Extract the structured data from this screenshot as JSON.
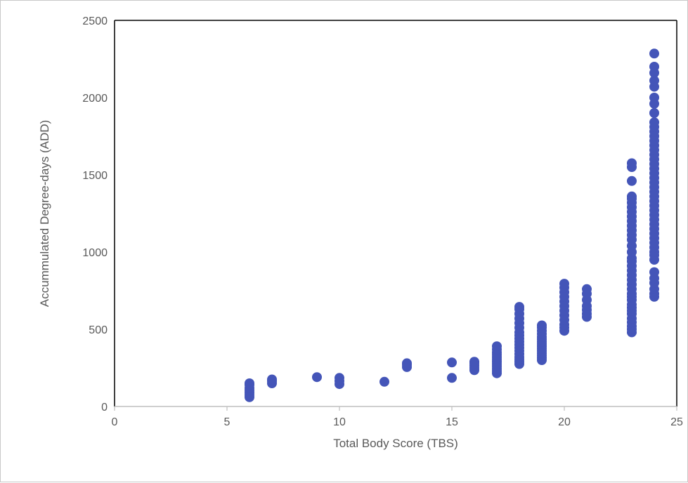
{
  "chart_data": {
    "type": "scatter",
    "title": "",
    "xlabel": "Total Body Score (TBS)",
    "ylabel": "Accummulated Degree-days (ADD)",
    "xlim": [
      0,
      25
    ],
    "ylim": [
      0,
      2500
    ],
    "xticks": [
      "0",
      "5",
      "10",
      "15",
      "20",
      "25"
    ],
    "yticks": [
      "0",
      "500",
      "1000",
      "1500",
      "2000",
      "2500"
    ],
    "grid": false,
    "legend": "none",
    "marker_color": "#4455B8",
    "series": [
      {
        "points": [
          [
            6,
            60
          ],
          [
            6,
            75
          ],
          [
            6,
            90
          ],
          [
            6,
            105
          ],
          [
            6,
            120
          ],
          [
            6,
            140
          ],
          [
            6,
            150
          ],
          [
            7,
            150
          ],
          [
            7,
            165
          ],
          [
            7,
            175
          ],
          [
            9,
            190
          ],
          [
            10,
            145
          ],
          [
            10,
            165
          ],
          [
            10,
            185
          ],
          [
            12,
            160
          ],
          [
            13,
            255
          ],
          [
            13,
            270
          ],
          [
            13,
            280
          ],
          [
            15,
            185
          ],
          [
            15,
            285
          ],
          [
            16,
            235
          ],
          [
            16,
            250
          ],
          [
            16,
            265
          ],
          [
            16,
            280
          ],
          [
            16,
            290
          ],
          [
            17,
            215
          ],
          [
            17,
            230
          ],
          [
            17,
            245
          ],
          [
            17,
            260
          ],
          [
            17,
            275
          ],
          [
            17,
            290
          ],
          [
            17,
            305
          ],
          [
            17,
            320
          ],
          [
            17,
            335
          ],
          [
            17,
            350
          ],
          [
            17,
            370
          ],
          [
            17,
            390
          ],
          [
            18,
            275
          ],
          [
            18,
            290
          ],
          [
            18,
            305
          ],
          [
            18,
            320
          ],
          [
            18,
            340
          ],
          [
            18,
            360
          ],
          [
            18,
            380
          ],
          [
            18,
            400
          ],
          [
            18,
            420
          ],
          [
            18,
            440
          ],
          [
            18,
            460
          ],
          [
            18,
            480
          ],
          [
            18,
            510
          ],
          [
            18,
            540
          ],
          [
            18,
            570
          ],
          [
            18,
            600
          ],
          [
            18,
            630
          ],
          [
            18,
            645
          ],
          [
            19,
            300
          ],
          [
            19,
            315
          ],
          [
            19,
            330
          ],
          [
            19,
            345
          ],
          [
            19,
            360
          ],
          [
            19,
            375
          ],
          [
            19,
            390
          ],
          [
            19,
            405
          ],
          [
            19,
            420
          ],
          [
            19,
            435
          ],
          [
            19,
            450
          ],
          [
            19,
            470
          ],
          [
            19,
            490
          ],
          [
            19,
            510
          ],
          [
            19,
            525
          ],
          [
            20,
            490
          ],
          [
            20,
            510
          ],
          [
            20,
            530
          ],
          [
            20,
            560
          ],
          [
            20,
            590
          ],
          [
            20,
            620
          ],
          [
            20,
            650
          ],
          [
            20,
            680
          ],
          [
            20,
            710
          ],
          [
            20,
            740
          ],
          [
            20,
            770
          ],
          [
            20,
            795
          ],
          [
            21,
            580
          ],
          [
            21,
            600
          ],
          [
            21,
            625
          ],
          [
            21,
            650
          ],
          [
            21,
            690
          ],
          [
            21,
            730
          ],
          [
            21,
            760
          ],
          [
            23,
            480
          ],
          [
            23,
            500
          ],
          [
            23,
            520
          ],
          [
            23,
            545
          ],
          [
            23,
            570
          ],
          [
            23,
            600
          ],
          [
            23,
            620
          ],
          [
            23,
            640
          ],
          [
            23,
            660
          ],
          [
            23,
            690
          ],
          [
            23,
            710
          ],
          [
            23,
            730
          ],
          [
            23,
            760
          ],
          [
            23,
            790
          ],
          [
            23,
            820
          ],
          [
            23,
            850
          ],
          [
            23,
            880
          ],
          [
            23,
            910
          ],
          [
            23,
            940
          ],
          [
            23,
            960
          ],
          [
            23,
            1000
          ],
          [
            23,
            1040
          ],
          [
            23,
            1080
          ],
          [
            23,
            1110
          ],
          [
            23,
            1140
          ],
          [
            23,
            1170
          ],
          [
            23,
            1200
          ],
          [
            23,
            1230
          ],
          [
            23,
            1260
          ],
          [
            23,
            1290
          ],
          [
            23,
            1320
          ],
          [
            23,
            1345
          ],
          [
            23,
            1360
          ],
          [
            23,
            1460
          ],
          [
            23,
            1550
          ],
          [
            23,
            1575
          ],
          [
            24,
            710
          ],
          [
            24,
            730
          ],
          [
            24,
            760
          ],
          [
            24,
            800
          ],
          [
            24,
            830
          ],
          [
            24,
            870
          ],
          [
            24,
            950
          ],
          [
            24,
            980
          ],
          [
            24,
            1000
          ],
          [
            24,
            1030
          ],
          [
            24,
            1060
          ],
          [
            24,
            1090
          ],
          [
            24,
            1120
          ],
          [
            24,
            1150
          ],
          [
            24,
            1180
          ],
          [
            24,
            1210
          ],
          [
            24,
            1240
          ],
          [
            24,
            1270
          ],
          [
            24,
            1300
          ],
          [
            24,
            1330
          ],
          [
            24,
            1360
          ],
          [
            24,
            1390
          ],
          [
            24,
            1420
          ],
          [
            24,
            1450
          ],
          [
            24,
            1480
          ],
          [
            24,
            1510
          ],
          [
            24,
            1540
          ],
          [
            24,
            1570
          ],
          [
            24,
            1600
          ],
          [
            24,
            1630
          ],
          [
            24,
            1660
          ],
          [
            24,
            1690
          ],
          [
            24,
            1720
          ],
          [
            24,
            1750
          ],
          [
            24,
            1780
          ],
          [
            24,
            1810
          ],
          [
            24,
            1840
          ],
          [
            24,
            1900
          ],
          [
            24,
            1960
          ],
          [
            24,
            2000
          ],
          [
            24,
            2070
          ],
          [
            24,
            2110
          ],
          [
            24,
            2160
          ],
          [
            24,
            2200
          ],
          [
            24,
            2285
          ]
        ]
      }
    ]
  }
}
